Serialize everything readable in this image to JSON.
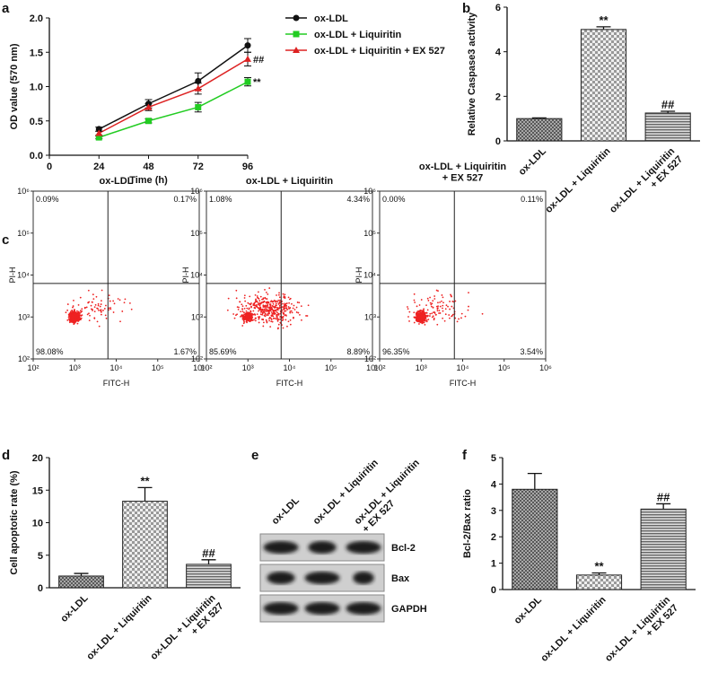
{
  "chart_data": [
    {
      "type": "line",
      "panel": "a",
      "xlabel": "Time (h)",
      "ylabel": "OD value (570 nm)",
      "x": [
        24,
        48,
        72,
        96
      ],
      "xlim": [
        0,
        96
      ],
      "xticks": [
        0,
        24,
        48,
        72,
        96
      ],
      "ylim": [
        0,
        2
      ],
      "yticks": [
        {
          "value": 0,
          "label": "0.0"
        },
        {
          "value": 0.5,
          "label": "0.5"
        },
        {
          "value": 1,
          "label": "1.0"
        },
        {
          "value": 1.5,
          "label": "1.5"
        },
        {
          "value": 2,
          "label": "2.0"
        }
      ],
      "series": [
        {
          "name": "ox-LDL",
          "color": "#111111",
          "marker": "circle",
          "values": [
            0.38,
            0.75,
            1.08,
            1.6
          ],
          "errors": [
            0.03,
            0.06,
            0.12,
            0.1
          ],
          "annotation": null
        },
        {
          "name": "ox-LDL + Liquiritin",
          "color": "#22cc22",
          "marker": "square",
          "values": [
            0.26,
            0.5,
            0.7,
            1.07
          ],
          "errors": [
            0.02,
            0.03,
            0.07,
            0.06
          ],
          "annotation": "**"
        },
        {
          "name": "ox-LDL + Liquiritin + EX 527",
          "color": "#dd2222",
          "marker": "triangle",
          "values": [
            0.32,
            0.7,
            0.97,
            1.4
          ],
          "errors": [
            0.03,
            0.05,
            0.08,
            0.1
          ],
          "annotation": "##"
        }
      ]
    },
    {
      "type": "bar",
      "panel": "b",
      "ylabel": "Relative Caspase3 activity",
      "categories": [
        "ox-LDL",
        "ox-LDL + Liquiritin",
        "ox-LDL + Liquiritin\n+ EX 527"
      ],
      "values": [
        1.0,
        5.0,
        1.25
      ],
      "errors": [
        0.03,
        0.12,
        0.08
      ],
      "annotations": [
        null,
        "**",
        "##"
      ],
      "ylim": [
        0,
        6
      ],
      "yticks": [
        0,
        2,
        4,
        6
      ]
    },
    {
      "type": "flow",
      "panel": "c",
      "xlabel": "FITC-H",
      "ylabel": "PI-H",
      "log": true,
      "ticks": [
        {
          "value": 100,
          "label": "10²"
        },
        {
          "value": 1000,
          "label": "10³"
        },
        {
          "value": 10000,
          "label": "10⁴"
        },
        {
          "value": 100000,
          "label": "10⁵"
        },
        {
          "value": 1000000,
          "label": "10⁶"
        }
      ],
      "plots": [
        {
          "title": "ox-LDL",
          "values": [
            0.09,
            0.17,
            98.08,
            1.67
          ],
          "value_labels": [
            "0.09%",
            "0.17%",
            "98.08%",
            "1.67%"
          ]
        },
        {
          "title": "ox-LDL + Liquiritin",
          "values": [
            1.08,
            4.34,
            85.69,
            8.89
          ],
          "value_labels": [
            "1.08%",
            "4.34%",
            "85.69%",
            "8.89%"
          ]
        },
        {
          "title": "ox-LDL + Liquiritin\n+ EX 527",
          "values": [
            0.0,
            0.11,
            96.35,
            3.54
          ],
          "value_labels": [
            "0.00%",
            "0.11%",
            "96.35%",
            "3.54%"
          ]
        }
      ]
    },
    {
      "type": "bar",
      "panel": "d",
      "ylabel": "Cell apoptotic rate (%)",
      "categories": [
        "ox-LDL",
        "ox-LDL + Liquiritin",
        "ox-LDL + Liquiritin\n+ EX 527"
      ],
      "values": [
        1.8,
        13.3,
        3.6
      ],
      "errors": [
        0.4,
        2.1,
        0.7
      ],
      "annotations": [
        null,
        "**",
        "##"
      ],
      "ylim": [
        0,
        20
      ],
      "yticks": [
        0,
        5,
        10,
        15,
        20
      ]
    },
    {
      "type": "blot",
      "panel": "e",
      "categories": [
        "ox-LDL",
        "ox-LDL + Liquiritin",
        "ox-LDL + Liquiritin\n+ EX 527"
      ],
      "rows": [
        "Bcl-2",
        "Bax",
        "GAPDH"
      ]
    },
    {
      "type": "bar",
      "panel": "f",
      "ylabel": "Bcl-2/Bax ratio",
      "categories": [
        "ox-LDL",
        "ox-LDL + Liquiritin",
        "ox-LDL + Liquiritin\n+ EX 527"
      ],
      "values": [
        3.8,
        0.55,
        3.05
      ],
      "errors": [
        0.6,
        0.08,
        0.2
      ],
      "annotations": [
        null,
        "**",
        "##"
      ],
      "ylim": [
        0,
        5
      ],
      "yticks": [
        0,
        1,
        2,
        3,
        4,
        5
      ]
    }
  ]
}
